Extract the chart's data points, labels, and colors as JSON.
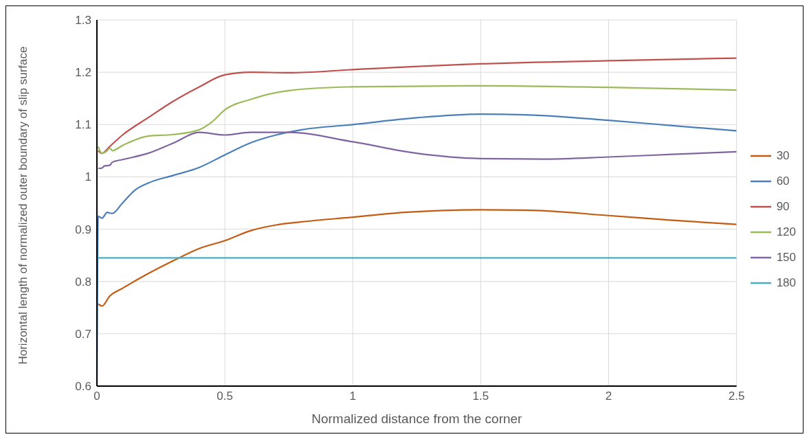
{
  "chart_data": {
    "type": "line",
    "xlabel": "Normalized distance  from the corner",
    "ylabel": "Horizontal length of normalized outer boundary of slip surface",
    "xlim": [
      0,
      2.5
    ],
    "xticks": [
      0,
      0.5,
      1,
      1.5,
      2,
      2.5
    ],
    "ylim": [
      0.6,
      1.3
    ],
    "yticks": [
      0.6,
      0.7,
      0.8,
      0.9,
      1,
      1.1,
      1.2,
      1.3
    ],
    "grid": true,
    "legend": "right",
    "marker": "none",
    "line_style": "solid",
    "series": [
      {
        "name": "30",
        "color": "#c55a11",
        "x": [
          0.005,
          0.02,
          0.05,
          0.1,
          0.2,
          0.3,
          0.4,
          0.5,
          0.6,
          0.7,
          0.8,
          1.0,
          1.2,
          1.5,
          1.7,
          2.0,
          2.25,
          2.5
        ],
        "values": [
          0.757,
          0.753,
          0.772,
          0.787,
          0.815,
          0.84,
          0.863,
          0.878,
          0.897,
          0.908,
          0.914,
          0.923,
          0.932,
          0.937,
          0.936,
          0.926,
          0.917,
          0.909
        ]
      },
      {
        "name": "60",
        "color": "#4a7ebb",
        "x": [
          0,
          0.005,
          0.02,
          0.04,
          0.06,
          0.1,
          0.15,
          0.2,
          0.3,
          0.4,
          0.5,
          0.6,
          0.7,
          0.8,
          1.0,
          1.25,
          1.5,
          1.75,
          2.0,
          2.25,
          2.5
        ],
        "values": [
          0.6,
          0.925,
          0.921,
          0.932,
          0.93,
          0.95,
          0.975,
          0.988,
          1.003,
          1.018,
          1.042,
          1.065,
          1.08,
          1.09,
          1.1,
          1.113,
          1.12,
          1.117,
          1.108,
          1.098,
          1.088
        ]
      },
      {
        "name": "90",
        "color": "#c0504d",
        "x": [
          0.005,
          0.02,
          0.05,
          0.1,
          0.2,
          0.3,
          0.4,
          0.5,
          0.6,
          0.75,
          1.0,
          1.5,
          2.0,
          2.5
        ],
        "values": [
          1.05,
          1.045,
          1.058,
          1.08,
          1.113,
          1.145,
          1.172,
          1.195,
          1.2,
          1.199,
          1.205,
          1.216,
          1.222,
          1.227
        ]
      },
      {
        "name": "120",
        "color": "#9bbb59",
        "x": [
          0.005,
          0.02,
          0.04,
          0.05,
          0.06,
          0.1,
          0.2,
          0.3,
          0.4,
          0.45,
          0.5,
          0.6,
          0.75,
          1.0,
          1.5,
          2.0,
          2.5
        ],
        "values": [
          1.058,
          1.045,
          1.05,
          1.055,
          1.05,
          1.06,
          1.078,
          1.081,
          1.09,
          1.105,
          1.128,
          1.148,
          1.165,
          1.172,
          1.174,
          1.171,
          1.166
        ]
      },
      {
        "name": "150",
        "color": "#8064a2",
        "x": [
          0.005,
          0.02,
          0.03,
          0.05,
          0.06,
          0.1,
          0.2,
          0.3,
          0.4,
          0.5,
          0.6,
          0.75,
          1.0,
          1.25,
          1.5,
          1.75,
          2.0,
          2.25,
          2.5
        ],
        "values": [
          1.016,
          1.017,
          1.021,
          1.022,
          1.028,
          1.033,
          1.045,
          1.065,
          1.085,
          1.08,
          1.085,
          1.085,
          1.067,
          1.045,
          1.035,
          1.034,
          1.038,
          1.043,
          1.048
        ]
      },
      {
        "name": "180",
        "color": "#4bacc6",
        "x": [
          0,
          2.5
        ],
        "values": [
          0.845,
          0.845
        ]
      }
    ]
  }
}
